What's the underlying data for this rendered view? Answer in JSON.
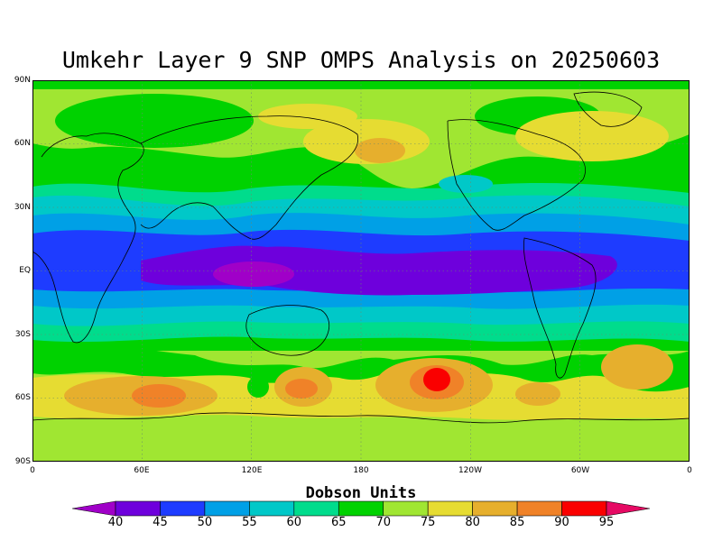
{
  "title": "Umkehr Layer 9 SNP OMPS Analysis on 20250603",
  "lat_labels": [
    "90N",
    "60N",
    "30N",
    "EQ",
    "30S",
    "60S",
    "90S"
  ],
  "lon_labels": [
    "0",
    "60E",
    "120E",
    "180",
    "120W",
    "60W",
    "0"
  ],
  "colorbar": {
    "title": "Dobson Units",
    "labels": [
      "40",
      "45",
      "50",
      "55",
      "60",
      "65",
      "70",
      "75",
      "80",
      "85",
      "90",
      "95"
    ],
    "colors": [
      "#a000c8",
      "#6e00dc",
      "#1e3cff",
      "#00a0e6",
      "#00c8c8",
      "#00dc8c",
      "#00d200",
      "#a0e632",
      "#e6dc32",
      "#e6af2d",
      "#f08228",
      "#fa0000",
      "#e60a64"
    ]
  },
  "map_colors": {
    "very_low": "#6e00dc",
    "low": "#1e3cff",
    "low_mid": "#00a0e6",
    "mid": "#00c8c8",
    "mid_high": "#00dc8c",
    "green": "#00d200",
    "light_green": "#a0e632",
    "yellow": "#e6dc32",
    "orange": "#e6af2d",
    "dark_orange": "#f08228",
    "red": "#fa0000"
  }
}
